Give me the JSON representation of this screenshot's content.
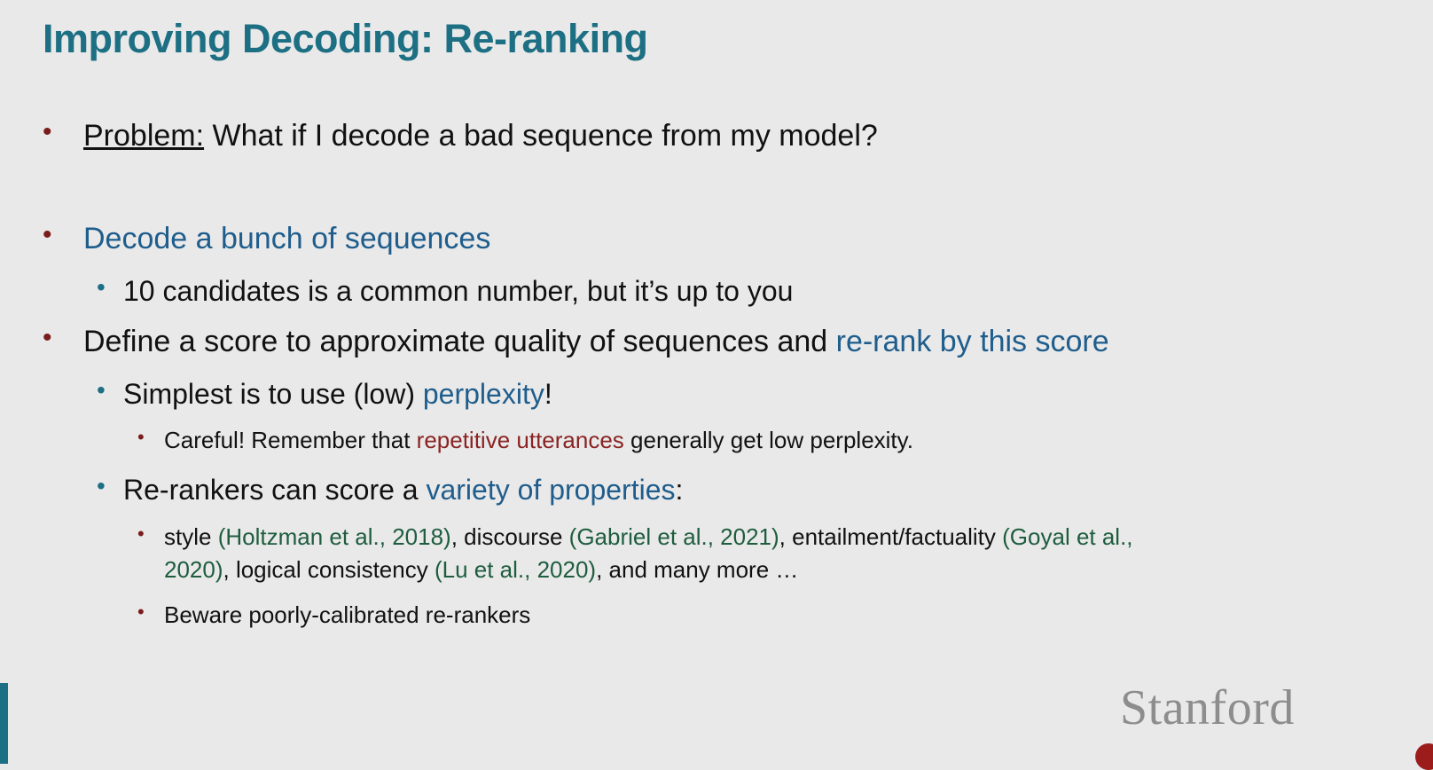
{
  "slide": {
    "title": "Improving Decoding: Re-ranking",
    "logo_text": "Stanford",
    "b1": {
      "label": "Problem:",
      "text": " What if I decode a bad sequence from my model?"
    },
    "b2": {
      "text": "Decode a bunch of sequences"
    },
    "b2a": {
      "text": "10 candidates is a common number, but it’s up to you"
    },
    "b3": {
      "pre": "Define a score to approximate quality of sequences and ",
      "hl": "re-rank by this score"
    },
    "b3a": {
      "pre": "Simplest is to use (low) ",
      "hl": "perplexity",
      "post": "!"
    },
    "b3a1": {
      "pre": "Careful! Remember that ",
      "hl": "repetitive utterances",
      "post": " generally get low perplexity."
    },
    "b3b": {
      "pre": "Re-rankers can score a ",
      "hl": "variety of properties",
      "post": ":"
    },
    "b3b1": {
      "line1": {
        "t1": "style ",
        "c1": "(Holtzman et al., 2018)",
        "t2": ", discourse ",
        "c2": "(Gabriel et al., 2021)",
        "t3": ", entailment/factuality ",
        "c3": "(Goyal et al.,"
      },
      "line2": {
        "c3b": "2020)",
        "t4": ", logical consistency ",
        "c4": "(Lu et al., 2020)",
        "t5": ", and many more …"
      }
    },
    "b3b2": {
      "text": "Beware poorly-calibrated re-rankers"
    }
  },
  "colors": {
    "title": "#1d6f83",
    "highlight_blue": "#1f5d8c",
    "highlight_red": "#8a2323",
    "citation_green": "#1e5d3e",
    "bullet_red": "#7a1c1c",
    "background": "#e9e9e9"
  }
}
